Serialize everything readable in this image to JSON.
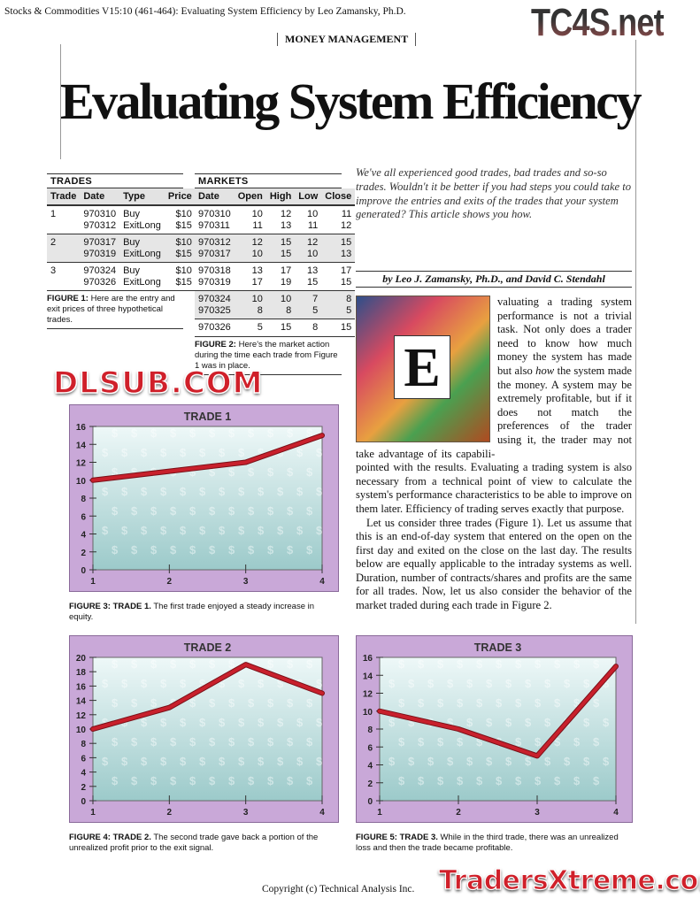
{
  "header": {
    "citation": "Stocks & Commodities V15:10 (461-464): Evaluating System Efficiency by Leo Zamansky, Ph.D.",
    "logo": "TC4S.net",
    "section": "MONEY MANAGEMENT"
  },
  "title": "Evaluating System Efficiency",
  "trades": {
    "heading": "TRADES",
    "columns": [
      "Trade",
      "Date",
      "Type",
      "Price"
    ],
    "groups": [
      {
        "trade": "1",
        "rows": [
          [
            "970310",
            "Buy",
            "$10"
          ],
          [
            "970312",
            "ExitLong",
            "$15"
          ]
        ]
      },
      {
        "trade": "2",
        "rows": [
          [
            "970317",
            "Buy",
            "$10"
          ],
          [
            "970319",
            "ExitLong",
            "$15"
          ]
        ]
      },
      {
        "trade": "3",
        "rows": [
          [
            "970324",
            "Buy",
            "$10"
          ],
          [
            "970326",
            "ExitLong",
            "$15"
          ]
        ]
      }
    ],
    "caption_label": "FIGURE 1:",
    "caption": " Here are the entry and exit prices of three hypothetical trades."
  },
  "markets": {
    "heading": "MARKETS",
    "columns": [
      "Date",
      "Open",
      "High",
      "Low",
      "Close"
    ],
    "groups": [
      [
        [
          "970310",
          "10",
          "12",
          "10",
          "11"
        ],
        [
          "970311",
          "11",
          "13",
          "11",
          "12"
        ]
      ],
      [
        [
          "970312",
          "12",
          "15",
          "12",
          "15"
        ],
        [
          "970317",
          "10",
          "15",
          "10",
          "13"
        ]
      ],
      [
        [
          "970318",
          "13",
          "17",
          "13",
          "17"
        ],
        [
          "970319",
          "17",
          "19",
          "15",
          "15"
        ]
      ],
      [
        [
          "970324",
          "10",
          "10",
          "7",
          "8"
        ],
        [
          "970325",
          "8",
          "8",
          "5",
          "5"
        ]
      ],
      [
        [
          "970326",
          "5",
          "15",
          "8",
          "15"
        ]
      ]
    ],
    "caption_label": "FIGURE 2:",
    "caption": " Here's the market action during the time each trade from Figure 1 was in place."
  },
  "intro": "We've all experienced good trades, bad trades and so-so trades. Wouldn't it be better if you had steps you could take to improve the entries and exits of the trades that your system generated? This article shows you how.",
  "byline": "by Leo J. Zamansky, Ph.D., and David C. Stendahl",
  "body": {
    "dropcap": "E",
    "p1a": "valuating a trading system performance is not a trivial task. Not only does a trader need to know how much money the system has made but also ",
    "p1_em": "how",
    "p1b": " the system made the money. A system may be extremely profitable, but if it does not match the preferences of the trader using it, the trader may not take advantage of its capabili-",
    "p1c": "pointed with the results. Evaluating a trading system is also necessary from a technical point of view to calculate the system's performance characteristics to be able to improve on them later. Efficiency of trading serves exactly that purpose.",
    "p2": "Let us consider three trades (Figure 1). Let us assume that this is an end-of-day system that entered on the open on the first day and exited on the close on the last day. The results below are equally applicable to the intraday systems as well. Duration, number of contracts/shares and profits are the same for all trades. Now, let us also consider the behavior of the market traded during each trade in Figure 2."
  },
  "chart_data": [
    {
      "type": "line",
      "title": "TRADE 1",
      "x": [
        1,
        2,
        3,
        4
      ],
      "values": [
        10,
        11,
        12,
        15
      ],
      "ylim": [
        0,
        16
      ],
      "yticks": [
        0,
        2,
        4,
        6,
        8,
        10,
        12,
        14,
        16
      ],
      "xticks": [
        1,
        2,
        3,
        4
      ],
      "caption_label": "FIGURE 3: TRADE 1.",
      "caption": " The first trade enjoyed a steady increase in equity.",
      "line_color": "#c8202c",
      "panel_color": "#c9a8d8"
    },
    {
      "type": "line",
      "title": "TRADE 2",
      "x": [
        1,
        2,
        3,
        4
      ],
      "values": [
        10,
        13,
        19,
        15
      ],
      "ylim": [
        0,
        20
      ],
      "yticks": [
        0,
        2,
        4,
        6,
        8,
        10,
        12,
        14,
        16,
        18,
        20
      ],
      "xticks": [
        1,
        2,
        3,
        4
      ],
      "caption_label": "FIGURE 4: TRADE 2.",
      "caption": " The second trade gave back a portion of the unrealized profit prior to the exit signal.",
      "line_color": "#c8202c",
      "panel_color": "#c9a8d8"
    },
    {
      "type": "line",
      "title": "TRADE 3",
      "x": [
        1,
        2,
        3,
        4
      ],
      "values": [
        10,
        8,
        5,
        15
      ],
      "ylim": [
        0,
        16
      ],
      "yticks": [
        0,
        2,
        4,
        6,
        8,
        10,
        12,
        14,
        16
      ],
      "xticks": [
        1,
        2,
        3,
        4
      ],
      "caption_label": "FIGURE 5: TRADE 3.",
      "caption": " While in the third trade, there was an unrealized loss and then the trade became profitable.",
      "line_color": "#c8202c",
      "panel_color": "#c9a8d8"
    }
  ],
  "watermarks": {
    "center": "DLSUB.COM",
    "footer_logo": "TradersXtreme.com"
  },
  "footer": {
    "copyright": "Copyright (c) Technical Analysis Inc."
  }
}
